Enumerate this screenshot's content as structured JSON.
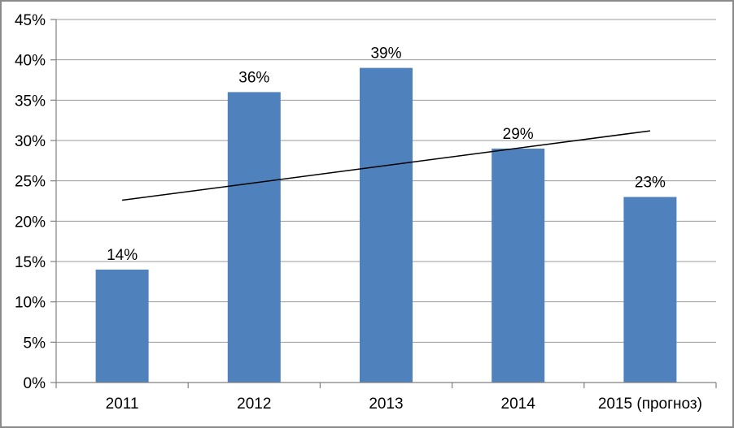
{
  "window": {
    "background": "#ffffff",
    "border_color": "#8a8a8a"
  },
  "chart_data": {
    "type": "bar",
    "title": "",
    "categories": [
      "2011",
      "2012",
      "2013",
      "2014",
      "2015 (прогноз)"
    ],
    "values": [
      14,
      36,
      39,
      29,
      23
    ],
    "data_labels": [
      "14%",
      "36%",
      "39%",
      "29%",
      "23%"
    ],
    "ylim": [
      0,
      45
    ],
    "ytick_step": 5,
    "ytick_labels": [
      "0%",
      "5%",
      "10%",
      "15%",
      "20%",
      "25%",
      "30%",
      "35%",
      "40%",
      "45%"
    ],
    "grid": true,
    "legend": "none",
    "bar_color": "#4F81BD",
    "axis_color": "#808080",
    "gridline_color": "#999999",
    "tick_color": "#808080",
    "label_color": "#000000",
    "trendline": {
      "type": "linear",
      "color": "#000000",
      "start_value": 22.6,
      "end_value": 31.2
    }
  }
}
